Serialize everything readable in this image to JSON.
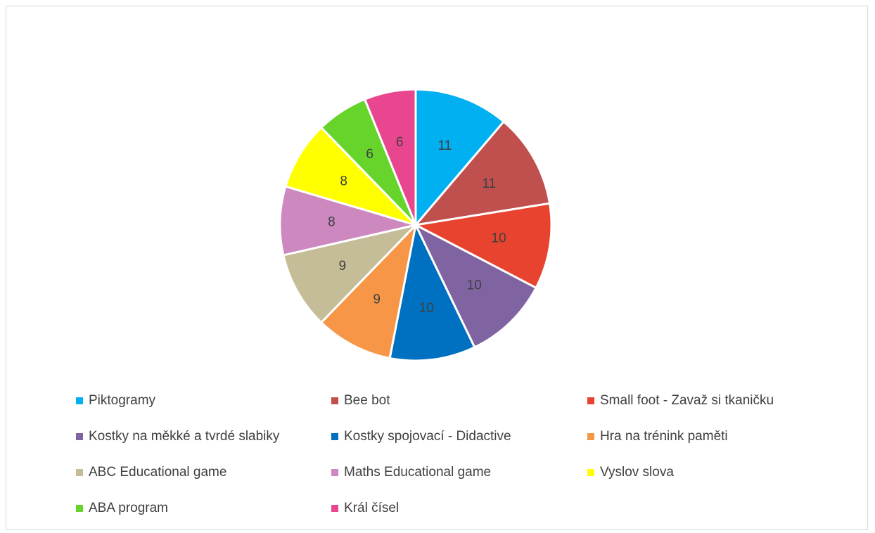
{
  "chart_data": {
    "type": "pie",
    "title": "",
    "legend_position": "bottom",
    "slices": [
      {
        "label": "Piktogramy",
        "value": 11,
        "color": "#00B0F0"
      },
      {
        "label": "Bee bot",
        "value": 11,
        "color": "#C0504D"
      },
      {
        "label": "Small foot - Zavaž si tkaničku",
        "value": 10,
        "color": "#E8432E"
      },
      {
        "label": "Kostky na měkké a tvrdé slabiky",
        "value": 10,
        "color": "#8064A2"
      },
      {
        "label": "Kostky spojovací - Didactive",
        "value": 10,
        "color": "#0070C0"
      },
      {
        "label": "Hra na trénink paměti",
        "value": 9,
        "color": "#F79646"
      },
      {
        "label": "ABC Educational game",
        "value": 9,
        "color": "#C4BD97"
      },
      {
        "label": "Maths Educational game",
        "value": 8,
        "color": "#CC88BF"
      },
      {
        "label": "Vyslov slova",
        "value": 8,
        "color": "#FFFF00"
      },
      {
        "label": "ABA program",
        "value": 6,
        "color": "#66D42B"
      },
      {
        "label": "Král čísel",
        "value": 6,
        "color": "#E8468F"
      }
    ]
  }
}
